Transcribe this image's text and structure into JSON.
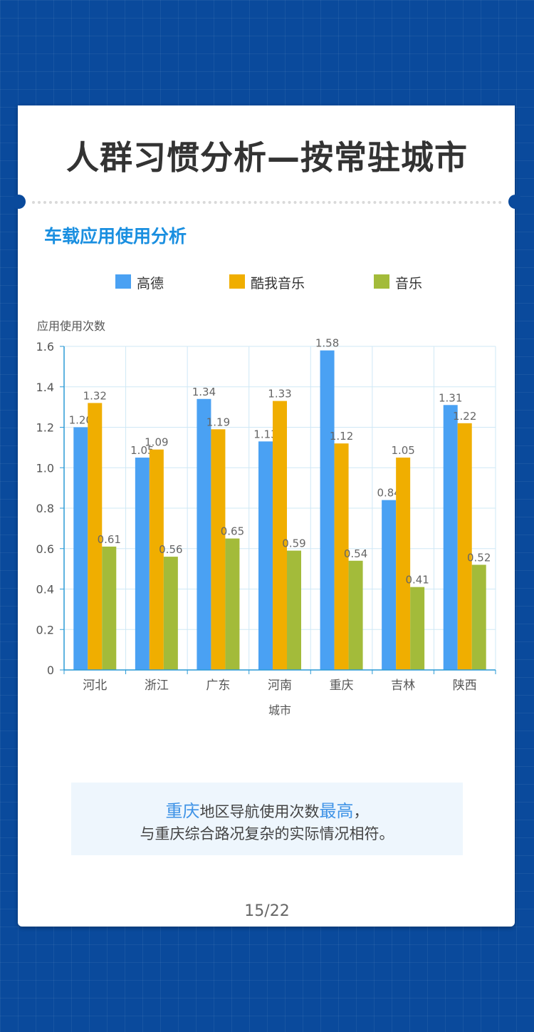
{
  "title": "人群习惯分析—按常驻城市",
  "subtitle": "车载应用使用分析",
  "colors": {
    "高德": "#4aa1f3",
    "酷我音乐": "#f0ae00",
    "音乐": "#a3bb3a",
    "accent": "#1a8fe0",
    "background": "#0a4a9c"
  },
  "chart_data": {
    "type": "bar",
    "categories": [
      "河北",
      "浙江",
      "广东",
      "河南",
      "重庆",
      "吉林",
      "陕西"
    ],
    "series": [
      {
        "name": "高德",
        "values": [
          1.2,
          1.05,
          1.34,
          1.13,
          1.58,
          0.84,
          1.31
        ],
        "labels": [
          "1.20",
          "1.05",
          "1.34",
          "1.13",
          "1.58",
          "0.84",
          "1.31"
        ]
      },
      {
        "name": "酷我音乐",
        "values": [
          1.32,
          1.09,
          1.19,
          1.33,
          1.12,
          1.05,
          1.22
        ],
        "labels": [
          "1.32",
          "1.09",
          "1.19",
          "1.33",
          "1.12",
          "1.05",
          "1.22"
        ]
      },
      {
        "name": "音乐",
        "values": [
          0.61,
          0.56,
          0.65,
          0.59,
          0.54,
          0.41,
          0.52
        ],
        "labels": [
          "0.61",
          "0.56",
          "0.65",
          "0.59",
          "0.54",
          "0.41",
          "0.52"
        ]
      }
    ],
    "xlabel": "城市",
    "ylabel": "应用使用次数",
    "ylim": [
      0,
      1.6
    ],
    "yticks": [
      "0",
      "0.2",
      "0.4",
      "0.6",
      "0.8",
      "1.0",
      "1.2",
      "1.4",
      "1.6"
    ],
    "grid": true,
    "legend": "top"
  },
  "note": {
    "line1_highlight1": "重庆",
    "line1_mid": "地区导航使用次数",
    "line1_highlight2": "最高",
    "line1_end": "，",
    "line2": "与重庆综合路况复杂的实际情况相符。"
  },
  "page_number": "15/22"
}
